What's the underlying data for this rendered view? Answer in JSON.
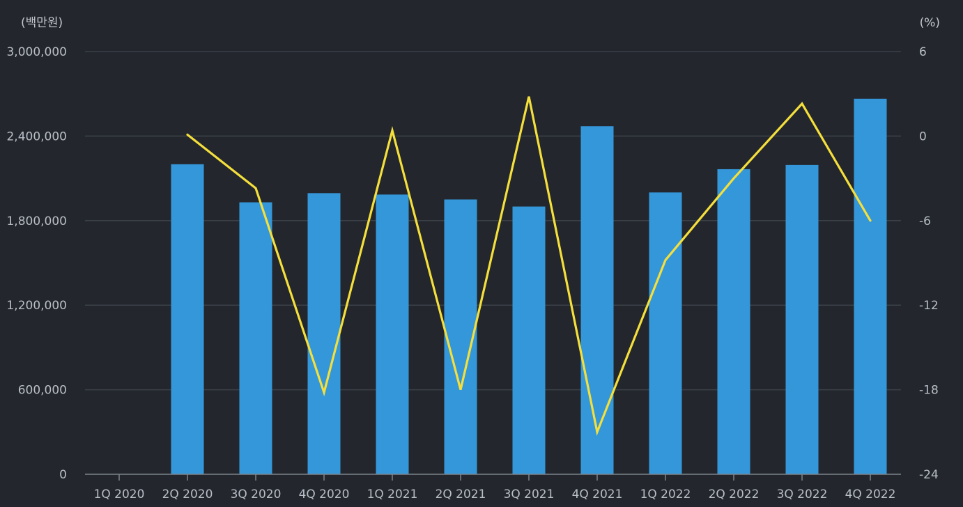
{
  "chart_data": {
    "type": "bar",
    "categories": [
      "1Q 2020",
      "2Q 2020",
      "3Q 2020",
      "4Q 2020",
      "1Q 2021",
      "2Q 2021",
      "3Q 2021",
      "4Q 2021",
      "1Q 2022",
      "2Q 2022",
      "3Q 2022",
      "4Q 2022"
    ],
    "series": [
      {
        "type": "bar",
        "axis": "left",
        "color": "#3497da",
        "values": [
          null,
          2200000,
          1930000,
          1995000,
          1985000,
          1950000,
          1900000,
          2470000,
          2000000,
          2165000,
          2195000,
          2665000
        ]
      },
      {
        "type": "line",
        "axis": "right",
        "color": "#f5df3b",
        "values": [
          null,
          0.1,
          -3.7,
          -18.2,
          0.4,
          -18.0,
          2.8,
          -21.0,
          -8.8,
          -3.0,
          2.3,
          -6.0
        ]
      }
    ],
    "yaxis_left": {
      "unit": "(백만원)",
      "ylim": [
        0,
        3000000
      ],
      "ticks": [
        0,
        600000,
        1200000,
        1800000,
        2400000,
        3000000
      ],
      "tick_labels": [
        "0",
        "600,000",
        "1,200,000",
        "1,800,000",
        "2,400,000",
        "3,000,000"
      ]
    },
    "yaxis_right": {
      "unit": "(%)",
      "ylim": [
        -24,
        6
      ],
      "ticks": [
        -24,
        -18,
        -12,
        -6,
        0,
        6
      ],
      "tick_labels": [
        "-24",
        "-18",
        "-12",
        "-6",
        "0",
        "6"
      ]
    },
    "grid": true,
    "legend": "none"
  }
}
